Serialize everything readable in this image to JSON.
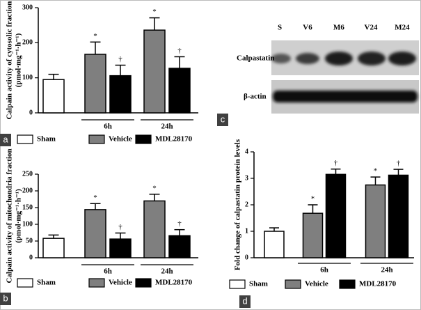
{
  "chart_data": [
    {
      "type": "bar",
      "panel_label": "a",
      "ylabel": [
        "Calpain activity of cytosolic fraction",
        "(pmol·mg⁻¹·h⁻¹)"
      ],
      "categories": [
        null,
        "6h",
        "24h"
      ],
      "series": [
        {
          "name": "Sham",
          "color": "#ffffff",
          "values": [
            95,
            null,
            null
          ],
          "errors": [
            15,
            null,
            null
          ],
          "annotations": [
            null,
            null,
            null
          ]
        },
        {
          "name": "Vehicle",
          "color": "#7f7f7f",
          "values": [
            null,
            167,
            236
          ],
          "errors": [
            null,
            35,
            35
          ],
          "annotations": [
            null,
            "*",
            "*"
          ]
        },
        {
          "name": "MDL28170",
          "color": "#000000",
          "values": [
            null,
            106,
            127
          ],
          "errors": [
            null,
            30,
            33
          ],
          "annotations": [
            null,
            "†",
            "†"
          ]
        }
      ],
      "ylim": [
        0,
        300
      ],
      "yticks": [
        0,
        100,
        200,
        300
      ]
    },
    {
      "type": "bar",
      "panel_label": "b",
      "ylabel": [
        "Calpain activity of mitochondria fraction",
        "(pmol·mg⁻¹·h⁻¹)"
      ],
      "categories": [
        null,
        "6h",
        "24h"
      ],
      "series": [
        {
          "name": "Sham",
          "color": "#ffffff",
          "values": [
            58,
            null,
            null
          ],
          "errors": [
            10,
            null,
            null
          ],
          "annotations": [
            null,
            null,
            null
          ]
        },
        {
          "name": "Vehicle",
          "color": "#7f7f7f",
          "values": [
            null,
            144,
            170
          ],
          "errors": [
            null,
            18,
            20
          ],
          "annotations": [
            null,
            "*",
            "*"
          ]
        },
        {
          "name": "MDL28170",
          "color": "#000000",
          "values": [
            null,
            56,
            66
          ],
          "errors": [
            null,
            18,
            18
          ],
          "annotations": [
            null,
            "†",
            "†"
          ]
        }
      ],
      "ylim": [
        0,
        250
      ],
      "yticks": [
        0,
        50,
        100,
        150,
        200,
        250
      ]
    },
    {
      "type": "bar",
      "panel_label": "d",
      "ylabel": [
        "Fold change of calpastatin protein levels"
      ],
      "categories": [
        null,
        "6h",
        "24h"
      ],
      "series": [
        {
          "name": "Sham",
          "color": "#ffffff",
          "values": [
            1.0,
            null,
            null
          ],
          "errors": [
            0.13,
            null,
            null
          ],
          "annotations": [
            null,
            null,
            null
          ]
        },
        {
          "name": "Vehicle",
          "color": "#7f7f7f",
          "values": [
            null,
            1.68,
            2.75
          ],
          "errors": [
            null,
            0.32,
            0.3
          ],
          "annotations": [
            null,
            "*",
            "*"
          ]
        },
        {
          "name": "MDL28170",
          "color": "#000000",
          "values": [
            null,
            3.15,
            3.12
          ],
          "errors": [
            null,
            0.2,
            0.22
          ],
          "annotations": [
            null,
            "†",
            "†"
          ]
        }
      ],
      "ylim": [
        0,
        4
      ],
      "yticks": [
        0,
        1,
        2,
        3,
        4
      ]
    }
  ],
  "blot": {
    "panel_label": "c",
    "lanes": [
      "S",
      "V6",
      "M6",
      "V24",
      "M24"
    ],
    "rows": [
      "Calpastatin",
      "β-actin"
    ]
  }
}
